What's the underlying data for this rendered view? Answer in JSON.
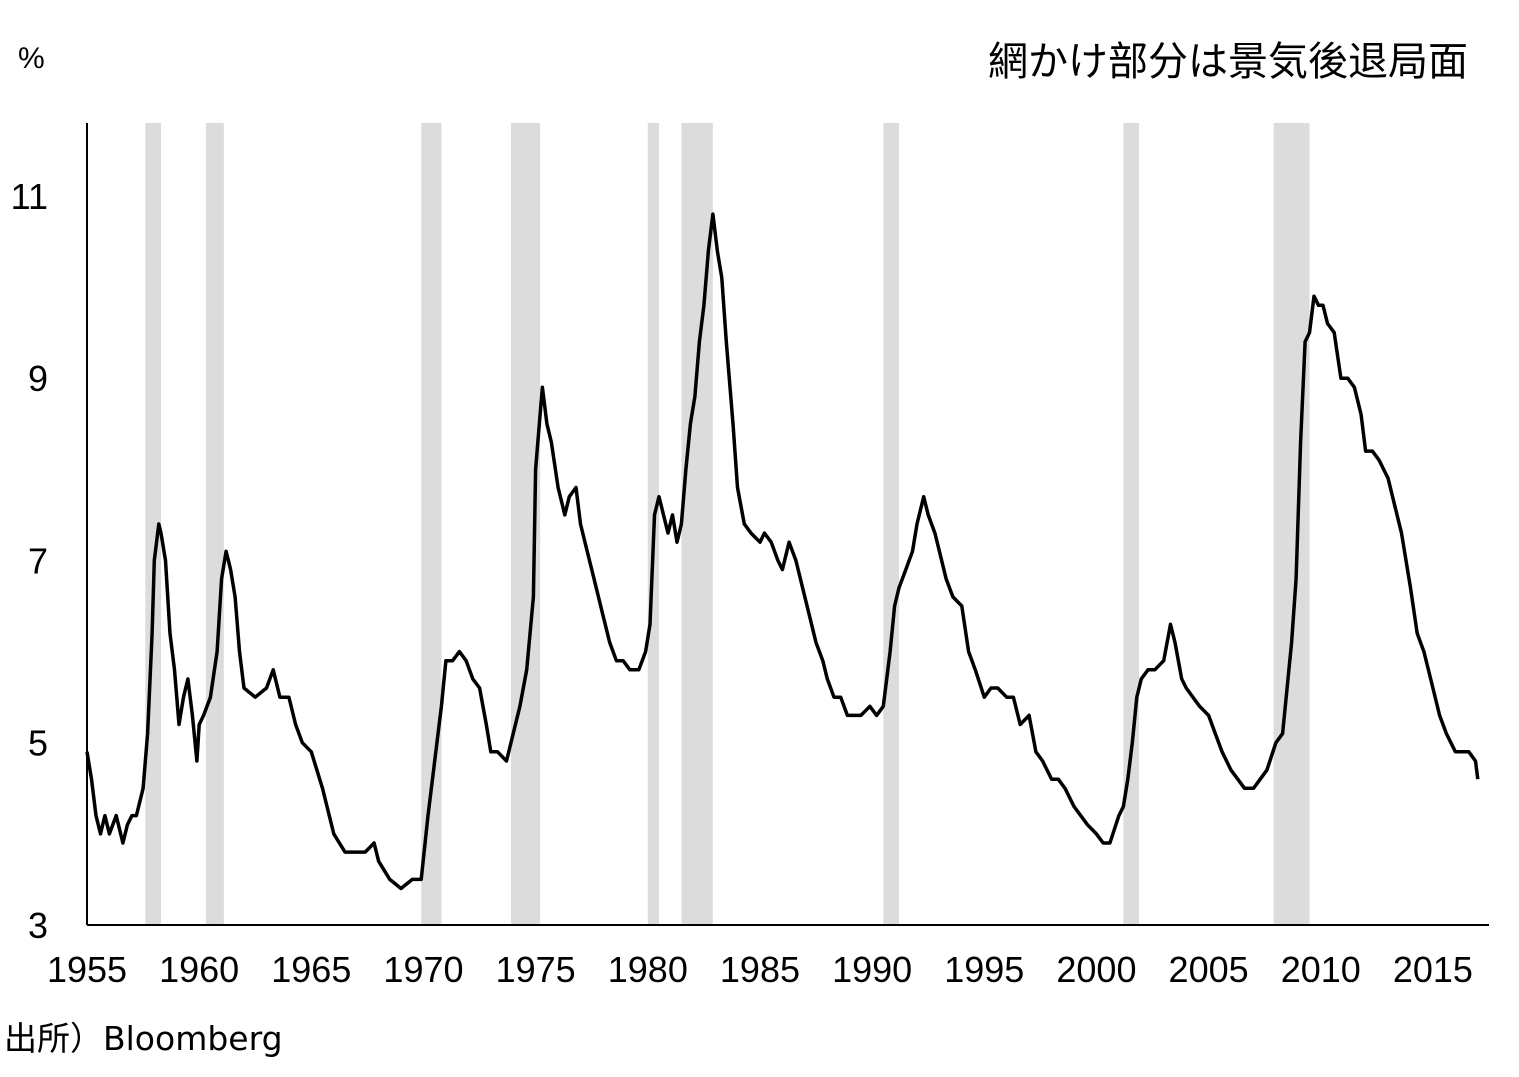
{
  "chart_data": {
    "type": "line",
    "title": "",
    "ylabel": "%",
    "xlabel": "",
    "legend_note": "網かけ部分は景気後退局面",
    "source": "出所）Bloomberg",
    "xlim": [
      1955,
      2017.5
    ],
    "ylim": [
      3,
      11.8
    ],
    "x_ticks": [
      1955,
      1960,
      1965,
      1970,
      1975,
      1980,
      1985,
      1990,
      1995,
      2000,
      2005,
      2010,
      2015
    ],
    "y_ticks": [
      3,
      5,
      7,
      9,
      11
    ],
    "grid": false,
    "colors": {
      "line": "#000000",
      "recession": "#dcdcdc"
    },
    "recessions": [
      [
        1957.6,
        1958.3
      ],
      [
        1960.3,
        1961.1
      ],
      [
        1969.9,
        1970.8
      ],
      [
        1973.9,
        1975.2
      ],
      [
        1980.0,
        1980.5
      ],
      [
        1981.5,
        1982.9
      ],
      [
        1990.5,
        1991.2
      ],
      [
        2001.2,
        2001.9
      ],
      [
        2007.9,
        2009.5
      ]
    ],
    "series": [
      {
        "name": "",
        "x": [
          1955.0,
          1955.2,
          1955.4,
          1955.6,
          1955.8,
          1956.0,
          1956.3,
          1956.6,
          1956.8,
          1957.0,
          1957.2,
          1957.5,
          1957.7,
          1957.9,
          1958.0,
          1958.2,
          1958.3,
          1958.5,
          1958.7,
          1958.9,
          1959.1,
          1959.3,
          1959.5,
          1959.7,
          1959.9,
          1960.0,
          1960.2,
          1960.5,
          1960.8,
          1961.0,
          1961.2,
          1961.4,
          1961.6,
          1961.8,
          1962.0,
          1962.5,
          1963.0,
          1963.3,
          1963.6,
          1964.0,
          1964.3,
          1964.6,
          1965.0,
          1965.5,
          1966.0,
          1966.5,
          1967.0,
          1967.4,
          1967.8,
          1968.0,
          1968.5,
          1969.0,
          1969.5,
          1969.9,
          1970.2,
          1970.5,
          1970.8,
          1971.0,
          1971.3,
          1971.6,
          1971.9,
          1972.2,
          1972.5,
          1972.8,
          1973.0,
          1973.3,
          1973.7,
          1974.0,
          1974.3,
          1974.6,
          1974.9,
          1975.0,
          1975.2,
          1975.3,
          1975.5,
          1975.7,
          1976.0,
          1976.3,
          1976.5,
          1976.8,
          1977.0,
          1977.3,
          1977.6,
          1978.0,
          1978.3,
          1978.6,
          1978.9,
          1979.2,
          1979.6,
          1979.9,
          1980.1,
          1980.3,
          1980.5,
          1980.7,
          1980.9,
          1981.1,
          1981.3,
          1981.5,
          1981.7,
          1981.9,
          1982.1,
          1982.3,
          1982.5,
          1982.7,
          1982.9,
          1983.1,
          1983.3,
          1983.5,
          1983.8,
          1984.0,
          1984.3,
          1984.6,
          1985.0,
          1985.2,
          1985.5,
          1985.8,
          1986.0,
          1986.3,
          1986.6,
          1986.9,
          1987.2,
          1987.5,
          1987.8,
          1988.0,
          1988.3,
          1988.6,
          1988.9,
          1989.2,
          1989.5,
          1989.9,
          1990.2,
          1990.5,
          1990.8,
          1991.0,
          1991.2,
          1991.5,
          1991.8,
          1992.0,
          1992.3,
          1992.5,
          1992.8,
          1993.0,
          1993.3,
          1993.6,
          1994.0,
          1994.3,
          1994.6,
          1995.0,
          1995.3,
          1995.6,
          1996.0,
          1996.3,
          1996.6,
          1997.0,
          1997.3,
          1997.6,
          1998.0,
          1998.3,
          1998.6,
          1999.0,
          1999.3,
          1999.6,
          2000.0,
          2000.3,
          2000.6,
          2001.0,
          2001.2,
          2001.4,
          2001.6,
          2001.8,
          2002.0,
          2002.3,
          2002.6,
          2003.0,
          2003.3,
          2003.5,
          2003.8,
          2004.0,
          2004.3,
          2004.6,
          2005.0,
          2005.3,
          2005.6,
          2006.0,
          2006.3,
          2006.6,
          2007.0,
          2007.3,
          2007.6,
          2008.0,
          2008.3,
          2008.5,
          2008.7,
          2008.9,
          2009.1,
          2009.3,
          2009.5,
          2009.7,
          2009.9,
          2010.1,
          2010.3,
          2010.6,
          2010.9,
          2011.2,
          2011.5,
          2011.8,
          2012.0,
          2012.3,
          2012.6,
          2013.0,
          2013.3,
          2013.6,
          2014.0,
          2014.3,
          2014.6,
          2015.0,
          2015.3,
          2015.6,
          2016.0,
          2016.3,
          2016.6,
          2016.9,
          2017.0
        ],
        "y": [
          4.9,
          4.6,
          4.2,
          4.0,
          4.2,
          4.0,
          4.2,
          3.9,
          4.1,
          4.2,
          4.2,
          4.5,
          5.1,
          6.2,
          7.0,
          7.4,
          7.3,
          7.0,
          6.2,
          5.8,
          5.2,
          5.5,
          5.7,
          5.3,
          4.8,
          5.2,
          5.3,
          5.5,
          6.0,
          6.8,
          7.1,
          6.9,
          6.6,
          6.0,
          5.6,
          5.5,
          5.6,
          5.8,
          5.5,
          5.5,
          5.2,
          5.0,
          4.9,
          4.5,
          4.0,
          3.8,
          3.8,
          3.8,
          3.9,
          3.7,
          3.5,
          3.4,
          3.5,
          3.5,
          4.2,
          4.8,
          5.4,
          5.9,
          5.9,
          6.0,
          5.9,
          5.7,
          5.6,
          5.2,
          4.9,
          4.9,
          4.8,
          5.1,
          5.4,
          5.8,
          6.6,
          8.0,
          8.6,
          8.9,
          8.5,
          8.3,
          7.8,
          7.5,
          7.7,
          7.8,
          7.4,
          7.1,
          6.8,
          6.4,
          6.1,
          5.9,
          5.9,
          5.8,
          5.8,
          6.0,
          6.3,
          7.5,
          7.7,
          7.5,
          7.3,
          7.5,
          7.2,
          7.4,
          8.0,
          8.5,
          8.8,
          9.4,
          9.8,
          10.4,
          10.8,
          10.4,
          10.1,
          9.4,
          8.5,
          7.8,
          7.4,
          7.3,
          7.2,
          7.3,
          7.2,
          7.0,
          6.9,
          7.2,
          7.0,
          6.7,
          6.4,
          6.1,
          5.9,
          5.7,
          5.5,
          5.5,
          5.3,
          5.3,
          5.3,
          5.4,
          5.3,
          5.4,
          6.0,
          6.5,
          6.7,
          6.9,
          7.1,
          7.4,
          7.7,
          7.5,
          7.3,
          7.1,
          6.8,
          6.6,
          6.5,
          6.0,
          5.8,
          5.5,
          5.6,
          5.6,
          5.5,
          5.5,
          5.2,
          5.3,
          4.9,
          4.8,
          4.6,
          4.6,
          4.5,
          4.3,
          4.2,
          4.1,
          4.0,
          3.9,
          3.9,
          4.2,
          4.3,
          4.6,
          5.0,
          5.5,
          5.7,
          5.8,
          5.8,
          5.9,
          6.3,
          6.1,
          5.7,
          5.6,
          5.5,
          5.4,
          5.3,
          5.1,
          4.9,
          4.7,
          4.6,
          4.5,
          4.5,
          4.6,
          4.7,
          5.0,
          5.1,
          5.6,
          6.1,
          6.8,
          8.3,
          9.4,
          9.5,
          9.9,
          9.8,
          9.8,
          9.6,
          9.5,
          9.0,
          9.0,
          8.9,
          8.6,
          8.2,
          8.2,
          8.1,
          7.9,
          7.6,
          7.3,
          6.7,
          6.2,
          6.0,
          5.6,
          5.3,
          5.1,
          4.9,
          4.9,
          4.9,
          4.8,
          4.6
        ]
      }
    ]
  }
}
